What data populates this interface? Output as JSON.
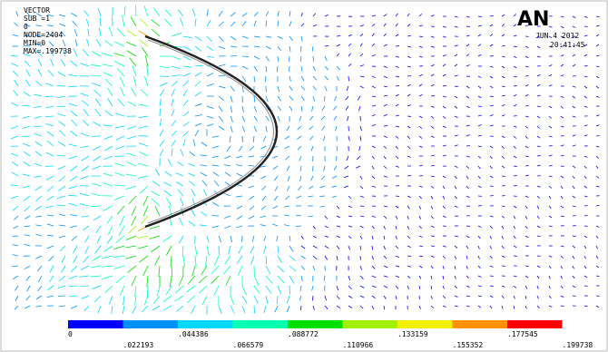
{
  "header": {
    "lines": [
      "VECTOR",
      "SUB =1",
      "0",
      "NODE=2404",
      "MIN=0",
      "MAX=.199738"
    ],
    "logo": "AN",
    "date": "JUN  4 2012",
    "time": "20:41:45"
  },
  "legend": {
    "colors": [
      "#0000ff",
      "#0090ff",
      "#00d8ff",
      "#00ffb0",
      "#00e000",
      "#a0f000",
      "#f0f000",
      "#ff9000",
      "#ff0000"
    ],
    "labels": [
      "0",
      ".022193",
      ".044386",
      ".066579",
      ".088772",
      ".110966",
      ".133159",
      ".155352",
      ".177545",
      ".199738"
    ]
  }
}
